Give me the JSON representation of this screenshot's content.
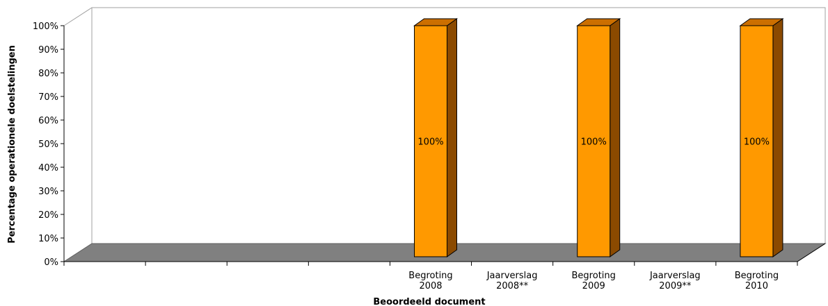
{
  "chart_data": {
    "type": "bar",
    "title": "",
    "xlabel": "Beoordeeld document",
    "ylabel": "Percentage operationele doelstelingen",
    "ylim": [
      0,
      100
    ],
    "yticks": [
      "0%",
      "10%",
      "20%",
      "30%",
      "40%",
      "50%",
      "60%",
      "70%",
      "80%",
      "90%",
      "100%"
    ],
    "categories": [
      "",
      "",
      "",
      "",
      "Begroting\n2008",
      "Jaarverslag\n2008**",
      "Begroting\n2009",
      "Jaarverslag\n2009**",
      "Begroting\n2010"
    ],
    "values": [
      null,
      null,
      null,
      null,
      100,
      null,
      100,
      null,
      100
    ],
    "data_labels": [
      "",
      "",
      "",
      "",
      "100%",
      "",
      "100%",
      "",
      "100%"
    ],
    "grid": false,
    "legend": "none",
    "colors": {
      "bar_front": "#ff9900",
      "bar_side": "#8b4a00",
      "bar_top": "#cc6f00",
      "floor": "#808080"
    }
  }
}
